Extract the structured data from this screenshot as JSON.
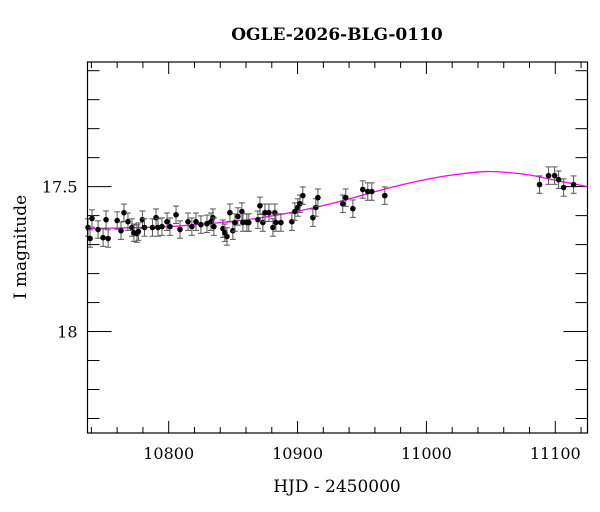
{
  "chart_data": {
    "type": "scatter",
    "title": "OGLE-2026-BLG-0110",
    "xlabel": "HJD - 2450000",
    "ylabel": "I magnitude",
    "xlim": [
      10737,
      11125
    ],
    "ylim": [
      18.35,
      17.07
    ],
    "y_inverted": true,
    "grid": false,
    "x_ticks": [
      10800,
      10900,
      11000,
      11100
    ],
    "x_tick_labels": [
      "10800",
      "10900",
      "11000",
      "11100"
    ],
    "y_ticks": [
      17.5,
      18
    ],
    "y_tick_labels": [
      "17.5",
      "18"
    ],
    "colors": {
      "points": "#000000",
      "errorbars": "#555555",
      "model": "#ff00ff"
    },
    "series": [
      {
        "kind": "points-with-errorbars",
        "x": [
          10737.4,
          10739.0,
          10740.5,
          10745.2,
          10749.1,
          10751.4,
          10753.0,
          10760.0,
          10763.0,
          10765.3,
          10768.4,
          10771.5,
          10773.0,
          10775.4,
          10776.5,
          10779.6,
          10781.2,
          10787.4,
          10790.2,
          10791.7,
          10794.8,
          10798.7,
          10801.0,
          10805.7,
          10808.8,
          10815.0,
          10818.0,
          10821.2,
          10825.0,
          10829.7,
          10832.8,
          10834.3,
          10835.1,
          10842.1,
          10843.6,
          10845.2,
          10847.5,
          10849.8,
          10851.4,
          10853.7,
          10856.8,
          10857.6,
          10860.7,
          10862.2,
          10869.2,
          10870.8,
          10873.1,
          10874.7,
          10877.8,
          10880.9,
          10882.4,
          10883.2,
          10887.1,
          10895.6,
          10897.9,
          10900.2,
          10901.8,
          10904.1,
          10911.9,
          10914.2,
          10915.8,
          10935.1,
          10937.4,
          10942.9,
          10950.6,
          10954.5,
          10957.6,
          10967.7,
          11087.8,
          11094.8,
          11099.5,
          11102.6,
          11106.5,
          11114.2
        ],
        "y": [
          17.641,
          17.679,
          17.61,
          17.648,
          17.676,
          17.614,
          17.679,
          17.617,
          17.652,
          17.59,
          17.621,
          17.641,
          17.659,
          17.662,
          17.655,
          17.614,
          17.641,
          17.641,
          17.607,
          17.641,
          17.638,
          17.621,
          17.638,
          17.597,
          17.648,
          17.621,
          17.638,
          17.621,
          17.631,
          17.628,
          17.621,
          17.607,
          17.638,
          17.645,
          17.659,
          17.672,
          17.59,
          17.652,
          17.624,
          17.603,
          17.586,
          17.624,
          17.624,
          17.624,
          17.614,
          17.566,
          17.624,
          17.59,
          17.59,
          17.641,
          17.59,
          17.624,
          17.624,
          17.621,
          17.586,
          17.572,
          17.559,
          17.531,
          17.607,
          17.572,
          17.538,
          17.559,
          17.538,
          17.576,
          17.51,
          17.517,
          17.517,
          17.531,
          17.493,
          17.462,
          17.462,
          17.476,
          17.503,
          17.493
        ],
        "yerr": 0.03
      },
      {
        "kind": "model-curve",
        "x": [
          10737,
          10770,
          10800,
          10830,
          10850,
          10875,
          10900,
          10925,
          10950,
          10975,
          11000,
          11020,
          11046,
          11065,
          11080,
          11100,
          11125
        ],
        "y": [
          17.645,
          17.642,
          17.638,
          17.628,
          17.62,
          17.605,
          17.585,
          17.56,
          17.53,
          17.5,
          17.475,
          17.46,
          17.448,
          17.452,
          17.46,
          17.478,
          17.5
        ]
      }
    ]
  }
}
